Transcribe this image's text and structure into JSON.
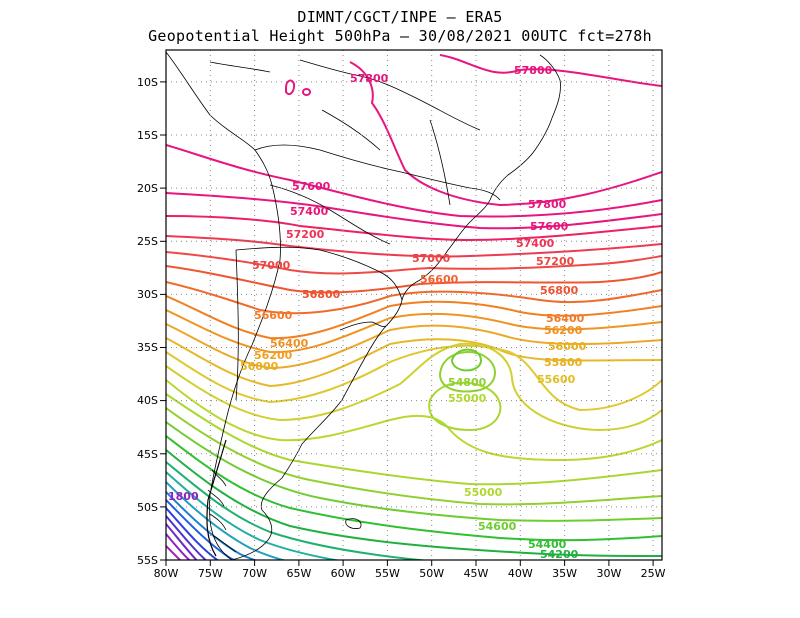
{
  "title": {
    "line1": "DIMNT/CGCT/INPE –  ERA5",
    "line2": "Geopotential Height 500hPa –  30/08/2021 00UTC fct=278h"
  },
  "map": {
    "lon_range": [
      -80,
      -24
    ],
    "lat_range": [
      -55,
      -7
    ],
    "x_ticks": [
      "80W",
      "75W",
      "70W",
      "65W",
      "60W",
      "55W",
      "50W",
      "45W",
      "40W",
      "35W",
      "30W",
      "25W"
    ],
    "y_ticks": [
      "10S",
      "15S",
      "20S",
      "25S",
      "30S",
      "35S",
      "40S",
      "45S",
      "50S",
      "55S"
    ]
  },
  "contour_labels": [
    {
      "text": "57800",
      "color": "#e8157f"
    },
    {
      "text": "57800",
      "color": "#e8157f"
    },
    {
      "text": "57600",
      "color": "#e8157f"
    },
    {
      "text": "57800",
      "color": "#e8157f"
    },
    {
      "text": "57400",
      "color": "#e8157f"
    },
    {
      "text": "57600",
      "color": "#e8157f"
    },
    {
      "text": "57200",
      "color": "#ee3355"
    },
    {
      "text": "57400",
      "color": "#ee3355"
    },
    {
      "text": "57000",
      "color": "#ee4444"
    },
    {
      "text": "57000",
      "color": "#ee4444"
    },
    {
      "text": "57200",
      "color": "#ee4444"
    },
    {
      "text": "56600",
      "color": "#f06030"
    },
    {
      "text": "56800",
      "color": "#f05030"
    },
    {
      "text": "56800",
      "color": "#f05030"
    },
    {
      "text": "56600",
      "color": "#f07a28"
    },
    {
      "text": "56400",
      "color": "#f07a28"
    },
    {
      "text": "56400",
      "color": "#f09020"
    },
    {
      "text": "56200",
      "color": "#f09020"
    },
    {
      "text": "56200",
      "color": "#f0a020"
    },
    {
      "text": "56000",
      "color": "#e8b020"
    },
    {
      "text": "56000",
      "color": "#e8b020"
    },
    {
      "text": "55800",
      "color": "#e8b020"
    },
    {
      "text": "55600",
      "color": "#e0c020"
    },
    {
      "text": "54800",
      "color": "#90d030"
    },
    {
      "text": "55000",
      "color": "#b0d830"
    },
    {
      "text": "55000",
      "color": "#b0d830"
    },
    {
      "text": "54600",
      "color": "#70cc30"
    },
    {
      "text": "54400",
      "color": "#30c030"
    },
    {
      "text": "54200",
      "color": "#20b040"
    },
    {
      "text": "1800",
      "color": "#9020c0"
    }
  ],
  "colors": {
    "frame": "#000000",
    "grid": "#888888",
    "coast": "#000000"
  }
}
